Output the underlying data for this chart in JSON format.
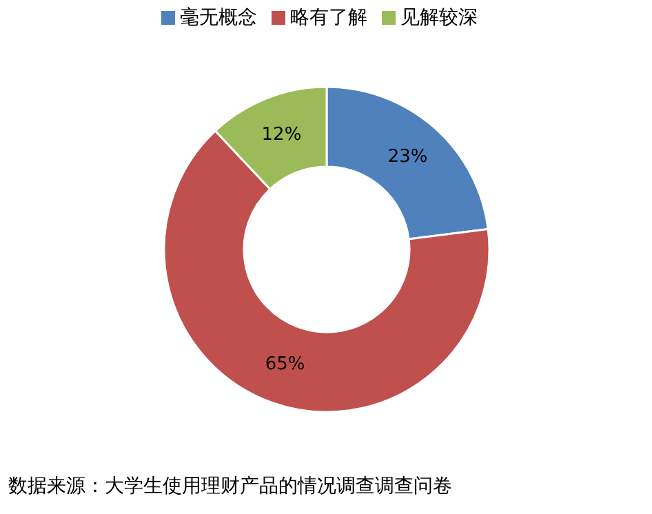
{
  "chart_data": {
    "type": "donut",
    "categories": [
      "毫无概念",
      "略有了解",
      "见解较深"
    ],
    "values": [
      23,
      65,
      12
    ],
    "colors": [
      "#4f81bd",
      "#c0504d",
      "#9bbb59"
    ],
    "value_labels": [
      "23%",
      "65%",
      "12%"
    ],
    "legend": "top",
    "annotations": [
      "数据来源：大学生使用理财产品的情况调查调查问卷"
    ]
  }
}
